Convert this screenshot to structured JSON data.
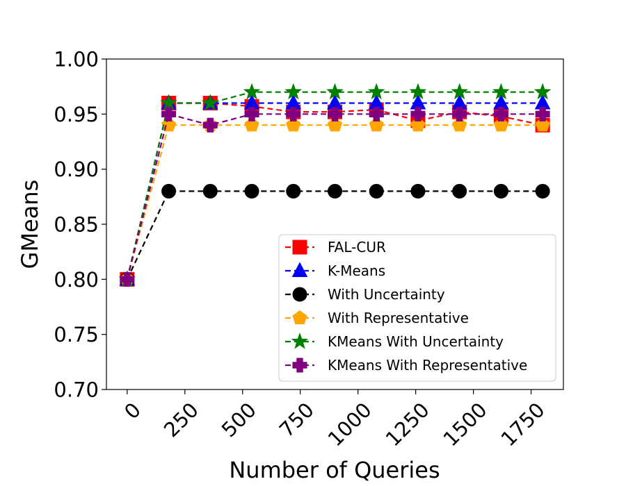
{
  "chart_data": {
    "type": "line",
    "title": "",
    "xlabel": "Number of Queries",
    "ylabel": "GMeans",
    "xlim": [
      -90,
      1890
    ],
    "ylim": [
      0.7,
      1.0
    ],
    "xticks": [
      0,
      250,
      500,
      750,
      1000,
      1250,
      1500,
      1750
    ],
    "xtick_labels": [
      "0",
      "250",
      "500",
      "750",
      "1000",
      "1250",
      "1500",
      "1750"
    ],
    "yticks": [
      0.7,
      0.75,
      0.8,
      0.85,
      0.9,
      0.95,
      1.0
    ],
    "ytick_labels": [
      "0.70",
      "0.75",
      "0.80",
      "0.85",
      "0.90",
      "0.95",
      "1.00"
    ],
    "grid": false,
    "legend_position": "lower-right",
    "x": [
      0,
      180,
      360,
      540,
      720,
      900,
      1080,
      1260,
      1440,
      1620,
      1800
    ],
    "series": [
      {
        "name": "FAL-CUR",
        "color": "#ff0000",
        "marker": "square",
        "values": [
          0.8,
          0.96,
          0.96,
          0.957,
          0.952,
          0.952,
          0.954,
          0.944,
          0.952,
          0.948,
          0.94
        ]
      },
      {
        "name": "K-Means",
        "color": "#0000ff",
        "marker": "triangle",
        "values": [
          0.8,
          0.96,
          0.96,
          0.96,
          0.96,
          0.96,
          0.96,
          0.96,
          0.96,
          0.96,
          0.96
        ]
      },
      {
        "name": "With Uncertainty",
        "color": "#000000",
        "marker": "circle",
        "values": [
          0.8,
          0.88,
          0.88,
          0.88,
          0.88,
          0.88,
          0.88,
          0.88,
          0.88,
          0.88,
          0.88
        ]
      },
      {
        "name": "With Representative",
        "color": "#ffa500",
        "marker": "pentagon",
        "values": [
          0.8,
          0.94,
          0.94,
          0.94,
          0.94,
          0.94,
          0.94,
          0.94,
          0.94,
          0.94,
          0.94
        ]
      },
      {
        "name": "KMeans With Uncertainty",
        "color": "#008000",
        "marker": "star",
        "values": [
          0.8,
          0.96,
          0.96,
          0.97,
          0.97,
          0.97,
          0.97,
          0.97,
          0.97,
          0.97,
          0.97
        ]
      },
      {
        "name": "KMeans With Representative",
        "color": "#800080",
        "marker": "plus",
        "values": [
          0.8,
          0.95,
          0.94,
          0.95,
          0.95,
          0.95,
          0.95,
          0.95,
          0.95,
          0.95,
          0.95
        ]
      }
    ]
  }
}
